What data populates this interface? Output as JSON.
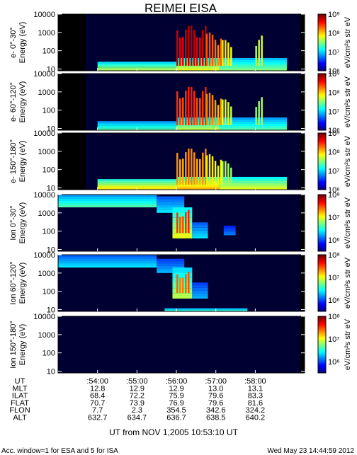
{
  "chart_data": {
    "type": "heatmap",
    "title": "REIMEI EISA",
    "x_tick_labels": [
      ":54:00",
      ":55:00",
      ":56:00",
      ":57:00",
      ":58:00"
    ],
    "x_tick_minutes": [
      54,
      55,
      56,
      57,
      58
    ],
    "x_range_minutes": [
      53.0,
      59.25
    ],
    "y_scale": "log",
    "y_range": [
      8,
      10000
    ],
    "y_tick_labels": [
      "10",
      "100",
      "1000",
      "10000"
    ],
    "y_tick_values": [
      10,
      100,
      1000,
      10000
    ],
    "panels": [
      {
        "label": "e- 0°-30°",
        "ylabel": "Energy (eV)",
        "colorbar_label": "eV/cm²s str eV",
        "colorbar_ticks": [
          "10⁶",
          "10⁷",
          "10⁸",
          "10⁹"
        ],
        "log_range": [
          6,
          9
        ],
        "background": 53.7,
        "bands": [
          {
            "t": [
              54.0,
              56.0
            ],
            "e": [
              8,
              25
            ],
            "level": 0.55
          },
          {
            "t": [
              56.0,
              57.1
            ],
            "e": [
              8,
              40
            ],
            "level": 0.6
          },
          {
            "t": [
              57.1,
              58.8
            ],
            "e": [
              8,
              40
            ],
            "level": 0.5
          }
        ],
        "bursts": [
          {
            "t": [
              56.0,
              56.75
            ],
            "e": [
              15,
              2500
            ],
            "level": 0.95
          },
          {
            "t": [
              56.75,
              57.15
            ],
            "e": [
              15,
              1000
            ],
            "level": 0.8
          },
          {
            "t": [
              57.15,
              57.4
            ],
            "e": [
              15,
              400
            ],
            "level": 0.65
          },
          {
            "t": [
              58.0,
              58.15
            ],
            "e": [
              15,
              800
            ],
            "level": 0.6
          }
        ]
      },
      {
        "label": "e- 60°-120°",
        "ylabel": "Energy (eV)",
        "colorbar_label": "eV/cm²s str eV",
        "colorbar_ticks": [
          "10⁶",
          "10⁷",
          "10⁸",
          "10⁹"
        ],
        "log_range": [
          6,
          9
        ],
        "background": 53.7,
        "bands": [
          {
            "t": [
              54.0,
              56.0
            ],
            "e": [
              8,
              25
            ],
            "level": 0.45
          },
          {
            "t": [
              56.0,
              57.1
            ],
            "e": [
              8,
              40
            ],
            "level": 0.55
          },
          {
            "t": [
              57.1,
              58.8
            ],
            "e": [
              8,
              40
            ],
            "level": 0.45
          }
        ],
        "bursts": [
          {
            "t": [
              56.0,
              56.75
            ],
            "e": [
              15,
              2000
            ],
            "level": 0.85
          },
          {
            "t": [
              56.75,
              57.15
            ],
            "e": [
              15,
              900
            ],
            "level": 0.75
          },
          {
            "t": [
              57.15,
              57.4
            ],
            "e": [
              15,
              400
            ],
            "level": 0.6
          },
          {
            "t": [
              58.0,
              58.15
            ],
            "e": [
              15,
              600
            ],
            "level": 0.55
          }
        ]
      },
      {
        "label": "e- 150°-180°",
        "ylabel": "Energy (eV)",
        "colorbar_label": "eV/cm²s str eV",
        "colorbar_ticks": [
          "10⁶",
          "10⁷",
          "10⁸",
          "10⁹"
        ],
        "log_range": [
          6,
          9
        ],
        "background": 53.7,
        "bands": [
          {
            "t": [
              54.0,
              56.0
            ],
            "e": [
              8,
              30
            ],
            "level": 0.65
          },
          {
            "t": [
              56.0,
              57.1
            ],
            "e": [
              8,
              40
            ],
            "level": 0.7
          },
          {
            "t": [
              57.1,
              58.8
            ],
            "e": [
              8,
              40
            ],
            "level": 0.6
          }
        ],
        "bursts": [
          {
            "t": [
              56.0,
              56.75
            ],
            "e": [
              15,
              1500
            ],
            "level": 0.75
          },
          {
            "t": [
              56.75,
              57.15
            ],
            "e": [
              15,
              700
            ],
            "level": 0.65
          },
          {
            "t": [
              57.15,
              57.4
            ],
            "e": [
              15,
              300
            ],
            "level": 0.55
          }
        ]
      },
      {
        "label": "Ion 0°-30°",
        "ylabel": "Energy (eV)",
        "colorbar_label": "eV/cm²s str eV",
        "colorbar_ticks": [
          "10⁶",
          "10⁷",
          "10⁸"
        ],
        "log_range": [
          5.5,
          8
        ],
        "background": 53.0,
        "bands": [
          {
            "t": [
              53.0,
              55.5
            ],
            "e": [
              2000,
              10000
            ],
            "level": 0.45
          },
          {
            "t": [
              55.5,
              56.2
            ],
            "e": [
              1000,
              8000
            ],
            "level": 0.35
          },
          {
            "t": [
              55.9,
              56.4
            ],
            "e": [
              40,
              2000
            ],
            "level": 0.6
          },
          {
            "t": [
              56.4,
              56.8
            ],
            "e": [
              40,
              300
            ],
            "level": 0.35
          },
          {
            "t": [
              57.2,
              57.5
            ],
            "e": [
              60,
              200
            ],
            "level": 0.25
          }
        ],
        "bursts": [
          {
            "t": [
              56.0,
              56.35
            ],
            "e": [
              80,
              1500
            ],
            "level": 0.85
          }
        ]
      },
      {
        "label": "Ion 60°-120°",
        "ylabel": "Energy (eV)",
        "colorbar_label": "eV/cm²s str eV",
        "colorbar_ticks": [
          "10⁶",
          "10⁷",
          "10⁸"
        ],
        "log_range": [
          5.5,
          8
        ],
        "background": 53.0,
        "bands": [
          {
            "t": [
              53.0,
              55.5
            ],
            "e": [
              2000,
              10000
            ],
            "level": 0.35
          },
          {
            "t": [
              55.5,
              56.2
            ],
            "e": [
              1000,
              6000
            ],
            "level": 0.3
          },
          {
            "t": [
              55.9,
              56.4
            ],
            "e": [
              40,
              2000
            ],
            "level": 0.55
          },
          {
            "t": [
              56.4,
              56.8
            ],
            "e": [
              40,
              300
            ],
            "level": 0.3
          },
          {
            "t": [
              55.7,
              57.8
            ],
            "e": [
              8,
              12
            ],
            "level": 0.45
          }
        ],
        "bursts": [
          {
            "t": [
              56.0,
              56.35
            ],
            "e": [
              80,
              1200
            ],
            "level": 0.8
          }
        ]
      },
      {
        "label": "Ion 150°-180°",
        "ylabel": "Energy (eV)",
        "colorbar_label": "eV/cm²s str eV",
        "colorbar_ticks": [
          "10⁶",
          "10⁷",
          "10⁸"
        ],
        "log_range": [
          5.5,
          8
        ],
        "background": 53.0,
        "bands": [],
        "bursts": []
      }
    ],
    "orbit_rows": [
      {
        "label": "UT",
        "values": [
          ":54:00",
          ":55:00",
          ":56:00",
          ":57:00",
          ":58:00"
        ]
      },
      {
        "label": "MLT",
        "values": [
          "12.8",
          "12.9",
          "12.9",
          "13.0",
          "13.1"
        ]
      },
      {
        "label": "ILAT",
        "values": [
          "68.4",
          "72.2",
          "75.9",
          "79.6",
          "83.3"
        ]
      },
      {
        "label": "FLAT",
        "values": [
          "70.7",
          "73.9",
          "76.9",
          "79.6",
          "81.6"
        ]
      },
      {
        "label": "FLON",
        "values": [
          "7.7",
          "2.3",
          "354.5",
          "342.6",
          "324.2"
        ]
      },
      {
        "label": "ALT",
        "values": [
          "632.7",
          "634.7",
          "636.7",
          "638.5",
          "640.2"
        ]
      }
    ]
  },
  "footer": {
    "ut_label": "UT from NOV  1,2005  10:53:10 UT",
    "window_note": "Acc. window=1 for ESA and 5 for ISA",
    "timestamp": "Wed May 23 14:44:59 2012"
  }
}
